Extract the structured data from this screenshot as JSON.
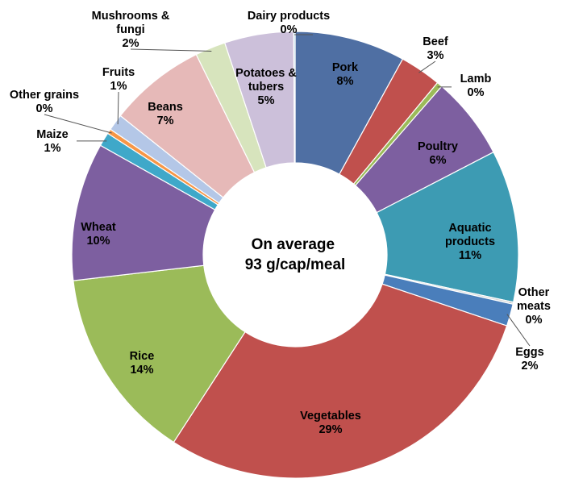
{
  "chart_data": {
    "type": "pie",
    "variant": "donut",
    "start_angle_deg": 0,
    "center_text": [
      "On average",
      "93 g/cap/meal"
    ],
    "slices": [
      {
        "name": "Pork",
        "label_name": [
          "Pork"
        ],
        "value_label": "8%",
        "value": 8,
        "color": "#4f6fa3",
        "label_color": "#000000"
      },
      {
        "name": "Beef",
        "label_name": [
          "Beef"
        ],
        "value_label": "3%",
        "value": 3,
        "color": "#c0504d",
        "label_color": "#000000"
      },
      {
        "name": "Lamb",
        "label_name": [
          "Lamb"
        ],
        "value_label": "0%",
        "value": 0.4,
        "color": "#9bbb59",
        "label_color": "#000000"
      },
      {
        "name": "Poultry",
        "label_name": [
          "Poultry"
        ],
        "value_label": "6%",
        "value": 6,
        "color": "#7d5fa0",
        "label_color": "#000000"
      },
      {
        "name": "Aquatic products",
        "label_name": [
          "Aquatic",
          "products"
        ],
        "value_label": "11%",
        "value": 11,
        "color": "#3d9bb3",
        "label_color": "#000000"
      },
      {
        "name": "Other meats",
        "label_name": [
          "Other",
          "meats"
        ],
        "value_label": "0%",
        "value": 0.15,
        "color": "#d9d9d9",
        "label_color": "#000000"
      },
      {
        "name": "Eggs",
        "label_name": [
          "Eggs"
        ],
        "value_label": "2%",
        "value": 1.6,
        "color": "#4a7ebb",
        "label_color": "#000000"
      },
      {
        "name": "Vegetables",
        "label_name": [
          "Vegetables"
        ],
        "value_label": "29%",
        "value": 29,
        "color": "#c0504d",
        "label_color": "#000000"
      },
      {
        "name": "Rice",
        "label_name": [
          "Rice"
        ],
        "value_label": "14%",
        "value": 14,
        "color": "#9bbb59",
        "label_color": "#000000"
      },
      {
        "name": "Wheat",
        "label_name": [
          "Wheat"
        ],
        "value_label": "10%",
        "value": 10,
        "color": "#7d5fa0",
        "label_color": "#000000"
      },
      {
        "name": "Maize",
        "label_name": [
          "Maize"
        ],
        "value_label": "1%",
        "value": 1,
        "color": "#3fa8c9",
        "label_color": "#000000"
      },
      {
        "name": "Other grains",
        "label_name": [
          "Other grains"
        ],
        "value_label": "0%",
        "value": 0.35,
        "color": "#f79646",
        "label_color": "#000000"
      },
      {
        "name": "Fruits",
        "label_name": [
          "Fruits"
        ],
        "value_label": "1%",
        "value": 1.2,
        "color": "#b4c7e7",
        "label_color": "#000000"
      },
      {
        "name": "Beans",
        "label_name": [
          "Beans"
        ],
        "value_label": "7%",
        "value": 7,
        "color": "#e6b9b8",
        "label_color": "#000000"
      },
      {
        "name": "Mushrooms & fungi",
        "label_name": [
          "Mushrooms &",
          "fungi"
        ],
        "value_label": "2%",
        "value": 2.2,
        "color": "#d7e4bd",
        "label_color": "#000000"
      },
      {
        "name": "Potatoes & tubers",
        "label_name": [
          "Potatoes &",
          "tubers"
        ],
        "value_label": "5%",
        "value": 5,
        "color": "#ccc0da",
        "label_color": "#000000"
      },
      {
        "name": "Dairy products",
        "label_name": [
          "Dairy products"
        ],
        "value_label": "0%",
        "value": 0.1,
        "color": "#93cddd",
        "label_color": "#000000"
      }
    ]
  }
}
